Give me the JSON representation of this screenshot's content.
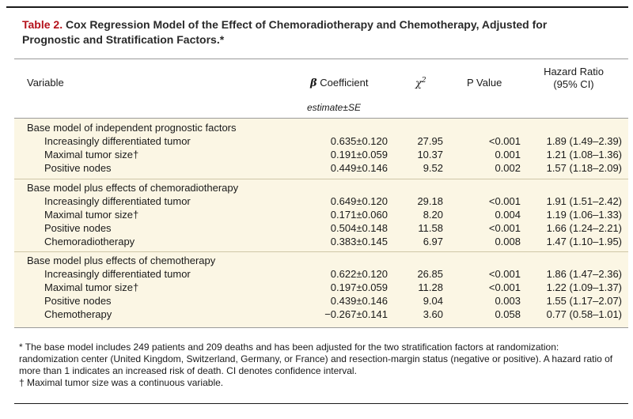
{
  "title": {
    "label": "Table 2.",
    "text": "Cox Regression Model of the Effect of Chemoradiotherapy and Chemotherapy, Adjusted for Prognostic and Stratification Factors.*"
  },
  "headers": {
    "variable": "Variable",
    "beta_symbol": "β",
    "beta_label": "Coefficient",
    "chi": "χ",
    "chi_sup": "2",
    "p": "P Value",
    "hr_line1": "Hazard Ratio",
    "hr_line2": "(95% CI)",
    "beta_sub": "estimate±SE"
  },
  "groups": [
    {
      "title": "Base model of independent prognostic factors",
      "rows": [
        {
          "variable": "Increasingly differentiated tumor",
          "beta": "0.635±0.120",
          "chi": "27.95",
          "p": "<0.001",
          "hr": "1.89 (1.49–2.39)"
        },
        {
          "variable": "Maximal tumor size†",
          "beta": "0.191±0.059",
          "chi": "10.37",
          "p": "0.001",
          "hr": "1.21 (1.08–1.36)"
        },
        {
          "variable": "Positive nodes",
          "beta": "0.449±0.146",
          "chi": "9.52",
          "p": "0.002",
          "hr": "1.57 (1.18–2.09)"
        }
      ]
    },
    {
      "title": "Base model plus effects of chemoradiotherapy",
      "rows": [
        {
          "variable": "Increasingly differentiated tumor",
          "beta": "0.649±0.120",
          "chi": "29.18",
          "p": "<0.001",
          "hr": "1.91 (1.51–2.42)"
        },
        {
          "variable": "Maximal tumor size†",
          "beta": "0.171±0.060",
          "chi": "8.20",
          "p": "0.004",
          "hr": "1.19 (1.06–1.33)"
        },
        {
          "variable": "Positive nodes",
          "beta": "0.504±0.148",
          "chi": "11.58",
          "p": "<0.001",
          "hr": "1.66 (1.24–2.21)"
        },
        {
          "variable": "Chemoradiotherapy",
          "beta": "0.383±0.145",
          "chi": "6.97",
          "p": "0.008",
          "hr": "1.47 (1.10–1.95)"
        }
      ]
    },
    {
      "title": "Base model plus effects of chemotherapy",
      "rows": [
        {
          "variable": "Increasingly differentiated tumor",
          "beta": "0.622±0.120",
          "chi": "26.85",
          "p": "<0.001",
          "hr": "1.86 (1.47–2.36)"
        },
        {
          "variable": "Maximal tumor size†",
          "beta": "0.197±0.059",
          "chi": "11.28",
          "p": "<0.001",
          "hr": "1.22 (1.09–1.37)"
        },
        {
          "variable": "Positive nodes",
          "beta": "0.439±0.146",
          "chi": "9.04",
          "p": "0.003",
          "hr": "1.55 (1.17–2.07)"
        },
        {
          "variable": "Chemotherapy",
          "beta": "−0.267±0.141",
          "chi": "3.60",
          "p": "0.058",
          "hr": "0.77 (0.58–1.01)"
        }
      ]
    }
  ],
  "footnotes": {
    "star": "* The base model includes 249 patients and 209 deaths and has been adjusted for the two stratification factors at randomization: randomization center (United Kingdom, Switzerland, Germany, or France) and resection-margin status (negative or positive). A hazard ratio of more than 1 indicates an increased risk of death. CI denotes confidence interval.",
    "dagger": "† Maximal tumor size was a continuous variable."
  },
  "colors": {
    "title_label": "#b5121b",
    "panel_background": "#fbf6e4"
  }
}
